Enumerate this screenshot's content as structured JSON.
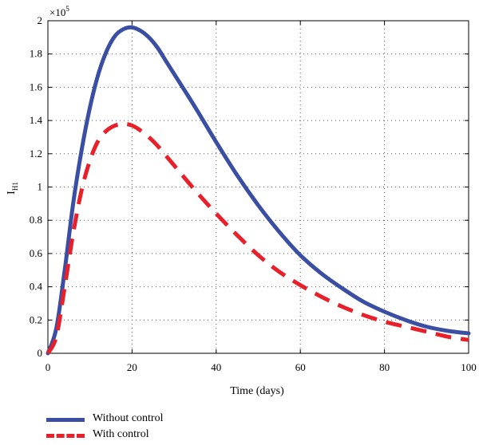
{
  "chart_data": {
    "type": "line",
    "title": "",
    "xlabel": "Time (days)",
    "ylabel": "I",
    "ylabel_subscript": "H1",
    "y_multiplier": "×10",
    "y_multiplier_exponent": "5",
    "xlim": [
      0,
      100
    ],
    "ylim": [
      0,
      2
    ],
    "x_ticks": [
      "0",
      "20",
      "40",
      "60",
      "80",
      "100"
    ],
    "y_ticks": [
      "0",
      "0.2",
      "0.4",
      "0.6",
      "0.8",
      "1",
      "1.2",
      "1.4",
      "1.6",
      "1.8",
      "2"
    ],
    "grid": true,
    "legend_placement": "bottom-left, below axes",
    "series": [
      {
        "name": "Without control",
        "color": "#3a4fa3",
        "style": "solid",
        "x": [
          0,
          2,
          4,
          6,
          8,
          10,
          12,
          14,
          16,
          18,
          20,
          22,
          24,
          26,
          28,
          30,
          35,
          40,
          45,
          50,
          55,
          60,
          65,
          70,
          75,
          80,
          85,
          90,
          95,
          100
        ],
        "y": [
          0.0,
          0.15,
          0.5,
          0.9,
          1.22,
          1.48,
          1.68,
          1.82,
          1.91,
          1.95,
          1.96,
          1.94,
          1.9,
          1.84,
          1.76,
          1.68,
          1.48,
          1.27,
          1.07,
          0.89,
          0.73,
          0.59,
          0.48,
          0.39,
          0.31,
          0.25,
          0.2,
          0.16,
          0.135,
          0.12
        ]
      },
      {
        "name": "With control",
        "color": "#e8202a",
        "style": "dashed",
        "x": [
          0,
          2,
          4,
          6,
          8,
          10,
          12,
          14,
          16,
          18,
          20,
          22,
          24,
          26,
          28,
          30,
          35,
          40,
          45,
          50,
          55,
          60,
          65,
          70,
          75,
          80,
          85,
          90,
          95,
          100
        ],
        "y": [
          0.0,
          0.1,
          0.4,
          0.72,
          0.98,
          1.16,
          1.28,
          1.34,
          1.37,
          1.38,
          1.37,
          1.34,
          1.3,
          1.25,
          1.19,
          1.13,
          0.98,
          0.84,
          0.71,
          0.59,
          0.49,
          0.41,
          0.34,
          0.28,
          0.23,
          0.19,
          0.16,
          0.13,
          0.1,
          0.08
        ]
      }
    ]
  }
}
